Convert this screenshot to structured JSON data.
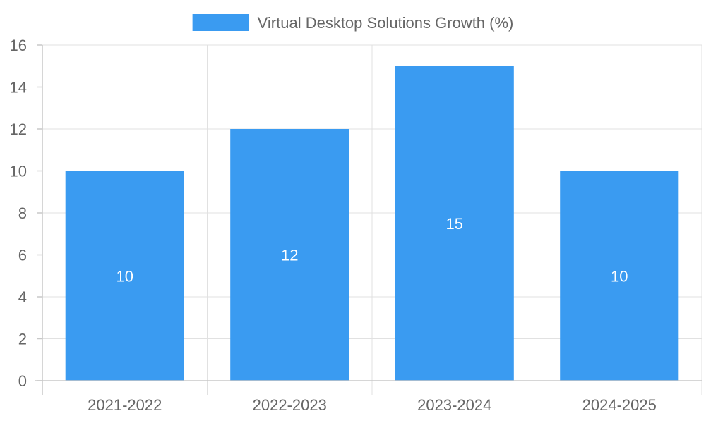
{
  "chart_data": {
    "type": "bar",
    "categories": [
      "2021-2022",
      "2022-2023",
      "2023-2024",
      "2024-2025"
    ],
    "series": [
      {
        "name": "Virtual Desktop Solutions Growth (%)",
        "values": [
          10,
          12,
          15,
          10
        ],
        "color": "#3a9bf1"
      }
    ],
    "data_labels": [
      "10",
      "12",
      "15",
      "10"
    ],
    "ylim": [
      0,
      16
    ],
    "y_ticks": [
      0,
      2,
      4,
      6,
      8,
      10,
      12,
      14,
      16
    ],
    "grid": true,
    "legend_position": "top-center",
    "title": "",
    "xlabel": "",
    "ylabel": ""
  }
}
